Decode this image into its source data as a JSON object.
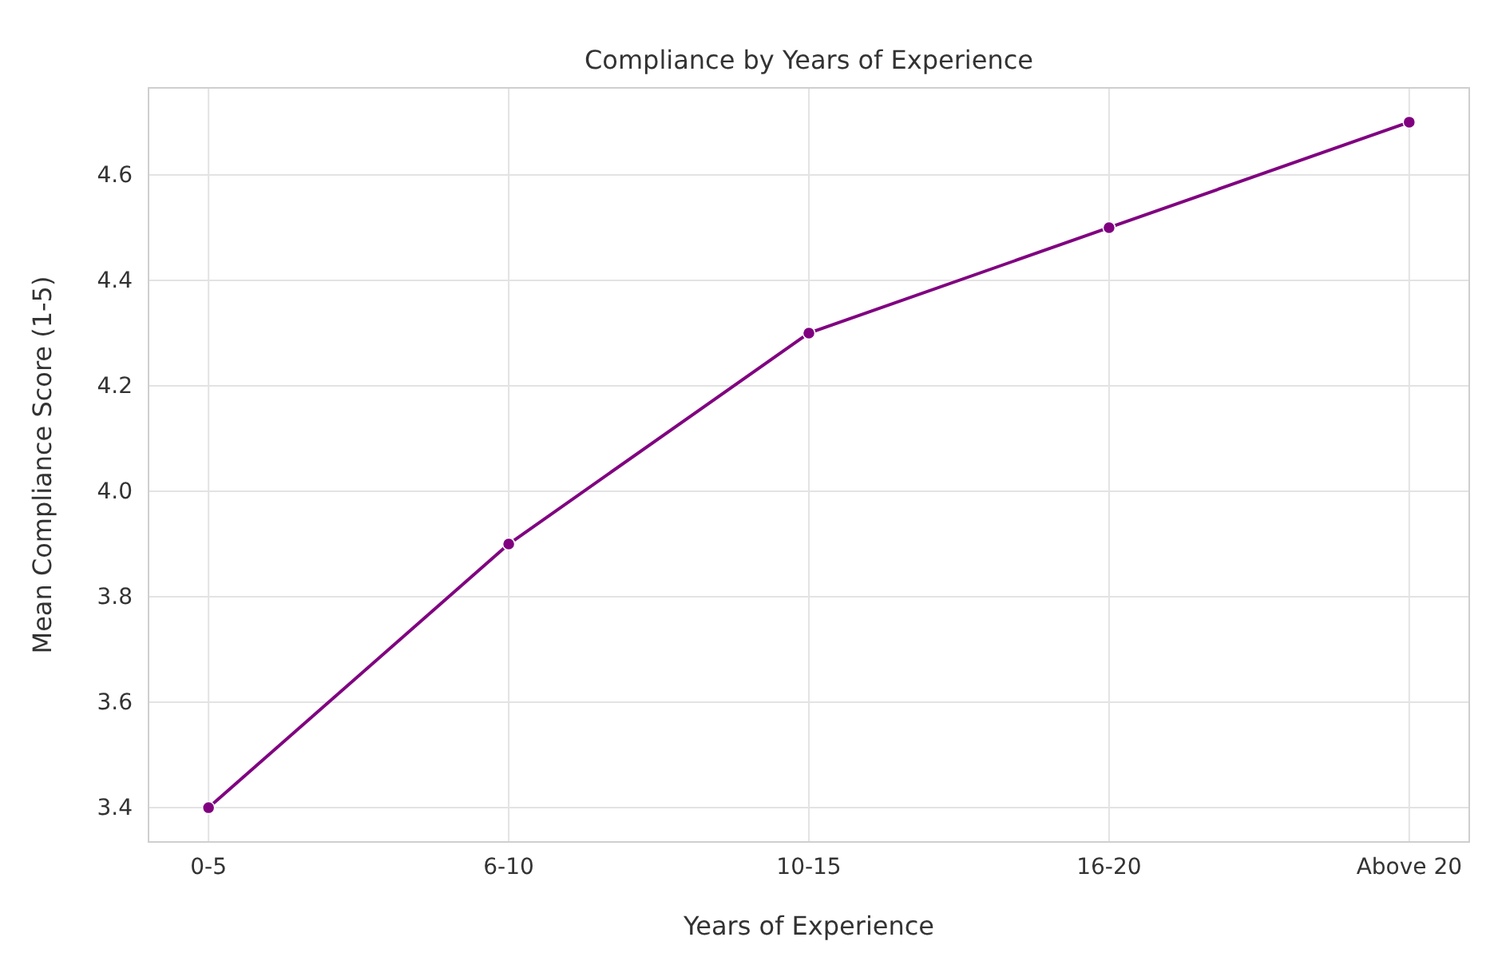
{
  "chart_data": {
    "type": "line",
    "title": "Compliance by Years of Experience",
    "xlabel": "Years of Experience",
    "ylabel": "Mean Compliance Score (1-5)",
    "categories": [
      "0-5",
      "6-10",
      "10-15",
      "16-20",
      "Above 20"
    ],
    "series": [
      {
        "color": "#800080",
        "values": [
          3.4,
          3.9,
          4.3,
          4.5,
          4.7
        ]
      }
    ],
    "ylim": [
      3.335,
      4.765
    ],
    "yticks": [
      3.4,
      3.6,
      3.8,
      {
        "value": 4,
        "label": "4.0"
      },
      4.2,
      4.4,
      4.6
    ],
    "grid": true,
    "marker": "circle",
    "line_style": "solid"
  }
}
